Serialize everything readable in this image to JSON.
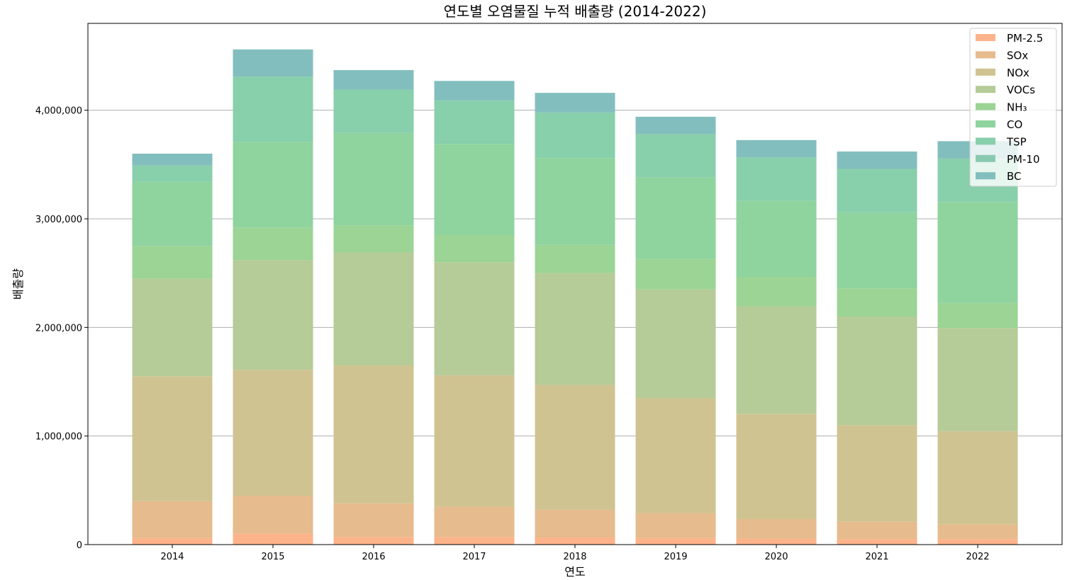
{
  "chart_data": {
    "type": "bar",
    "stacked": true,
    "title": "연도별 오염물질 누적 배출량 (2014-2022)",
    "xlabel": "연도",
    "ylabel": "배출량",
    "ylim": [
      0,
      4800000
    ],
    "yticks": [
      0,
      1000000,
      2000000,
      3000000,
      4000000
    ],
    "ytick_labels": [
      "0",
      "1,000,000",
      "2,000,000",
      "3,000,000",
      "4,000,000"
    ],
    "grid": "horizontal",
    "legend_position": "top-right",
    "categories": [
      "2014",
      "2015",
      "2016",
      "2017",
      "2018",
      "2019",
      "2020",
      "2021",
      "2022"
    ],
    "series": [
      {
        "name": "PM-2.5",
        "color": "#FDB38A",
        "values": [
          60000,
          100000,
          70000,
          70000,
          65000,
          60000,
          55000,
          50000,
          50000
        ]
      },
      {
        "name": "SOx",
        "color": "#E6BB8D",
        "values": [
          340000,
          350000,
          310000,
          280000,
          255000,
          230000,
          180000,
          160000,
          135000
        ]
      },
      {
        "name": "NOx",
        "color": "#CFC491",
        "values": [
          1150000,
          1160000,
          1270000,
          1210000,
          1150000,
          1060000,
          970000,
          890000,
          860000
        ]
      },
      {
        "name": "VOCs",
        "color": "#B5CB98",
        "values": [
          900000,
          1010000,
          1040000,
          1040000,
          1030000,
          1000000,
          990000,
          1000000,
          950000
        ]
      },
      {
        "name": "NH₃",
        "color": "#9BD494",
        "values": [
          300000,
          300000,
          250000,
          250000,
          260000,
          280000,
          270000,
          260000,
          230000
        ]
      },
      {
        "name": "CO",
        "color": "#8FD39F",
        "values": [
          590000,
          790000,
          850000,
          840000,
          800000,
          750000,
          700000,
          700000,
          930000
        ]
      },
      {
        "name": "TSP",
        "color": "#88CFAB",
        "values": [
          150000,
          600000,
          400000,
          400000,
          420000,
          400000,
          400000,
          400000,
          400000
        ]
      },
      {
        "name": "PM-10",
        "color": "#89C9B0",
        "values": [
          0,
          0,
          0,
          0,
          0,
          0,
          0,
          0,
          0
        ]
      },
      {
        "name": "BC",
        "color": "#83BEBE",
        "values": [
          110000,
          250000,
          180000,
          180000,
          180000,
          160000,
          160000,
          160000,
          160000
        ]
      }
    ]
  }
}
